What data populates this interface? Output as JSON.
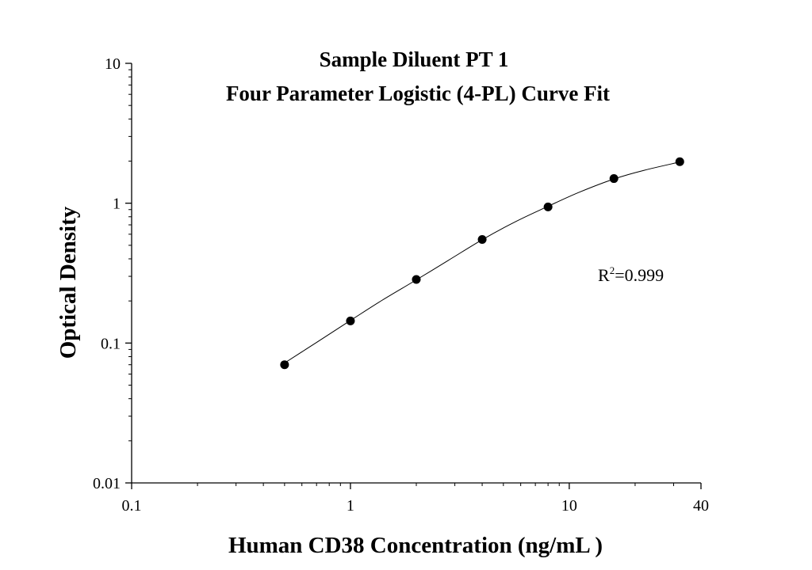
{
  "chart_data": {
    "type": "scatter",
    "title": "Sample Diluent PT 1",
    "subtitle": "Four Parameter Logistic (4-PL) Curve Fit",
    "xlabel": "Human CD38 Concentration (ng/mL )",
    "ylabel": "Optical Density",
    "x_scale": "log",
    "y_scale": "log",
    "xlim": [
      0.1,
      40
    ],
    "ylim": [
      0.01,
      10
    ],
    "x_ticks": [
      {
        "value": 0.1,
        "label": "0.1"
      },
      {
        "value": 1,
        "label": "1"
      },
      {
        "value": 10,
        "label": "10"
      },
      {
        "value": 40,
        "label": "40"
      }
    ],
    "y_ticks": [
      {
        "value": 0.01,
        "label": "0.01"
      },
      {
        "value": 0.1,
        "label": "0.1"
      },
      {
        "value": 1,
        "label": "1"
      },
      {
        "value": 10,
        "label": "10"
      }
    ],
    "series": [
      {
        "x": [
          0.5,
          1,
          2,
          4,
          8,
          16,
          32
        ],
        "y": [
          0.07,
          0.144,
          0.285,
          0.55,
          0.94,
          1.5,
          1.98
        ]
      }
    ],
    "fit_curve": {
      "model": "4-PL",
      "x": [
        0.5,
        0.7,
        1,
        1.4,
        2,
        2.8,
        4,
        5.7,
        8,
        11,
        16,
        22,
        32
      ],
      "y": [
        0.072,
        0.101,
        0.145,
        0.203,
        0.283,
        0.39,
        0.548,
        0.74,
        0.95,
        1.19,
        1.49,
        1.72,
        1.97
      ]
    },
    "annotation": {
      "base": "R",
      "superscript": "2",
      "value": "=0.999"
    },
    "grid": false,
    "legend": "none"
  }
}
